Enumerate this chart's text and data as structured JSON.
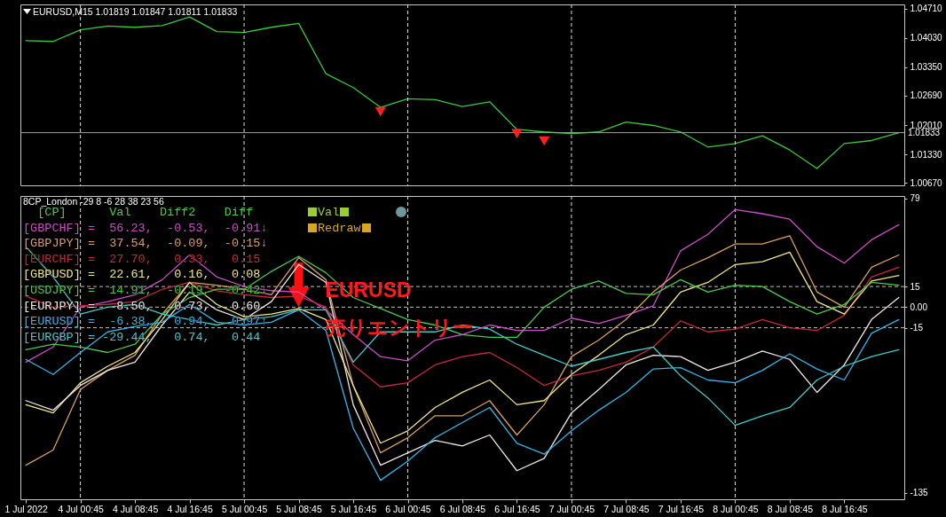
{
  "chart_data": [
    {
      "type": "line",
      "title": "EURUSD,M15  1.01819 1.01847 1.01811 1.01833",
      "categories": [
        "1 Jul 2022",
        null,
        "4 Jul 00:45",
        null,
        "4 Jul 08:45",
        null,
        "4 Jul 16:45",
        null,
        "5 Jul 00:45",
        null,
        "5 Jul 08:45",
        null,
        "5 Jul 16:45",
        null,
        "6 Jul 00:45",
        null,
        "6 Jul 08:45",
        null,
        "6 Jul 16:45",
        null,
        "7 Jul 00:45",
        null,
        "7 Jul 08:45",
        null,
        "7 Jul 16:45",
        null,
        "8 Jul 00:45",
        null,
        "8 Jul 08:45",
        null,
        "8 Jul 16:45",
        null,
        null
      ],
      "ylim": [
        1.0061,
        1.0481
      ],
      "yticks": [
        {
          "value": 1.0471,
          "label": "1.04710"
        },
        {
          "value": 1.0403,
          "label": "1.04030"
        },
        {
          "value": 1.0335,
          "label": "1.03350"
        },
        {
          "value": 1.0269,
          "label": "1.02690"
        },
        {
          "value": 1.0201,
          "label": "1.02010"
        },
        {
          "value": 1.0133,
          "label": "1.01330"
        },
        {
          "value": 1.0067,
          "label": "1.00670"
        }
      ],
      "tick_labels": "y",
      "series": [
        {
          "color": "#3cc83c",
          "values": [
            1.0397,
            1.0395,
            1.0422,
            1.0431,
            1.0428,
            1.0432,
            1.0452,
            1.0418,
            1.0416,
            1.0428,
            1.0437,
            1.032,
            1.0288,
            1.0242,
            1.0262,
            1.026,
            1.0244,
            1.0255,
            1.0191,
            1.0185,
            1.0181,
            1.0185,
            1.0208,
            1.02,
            1.0185,
            1.015,
            1.0158,
            1.0176,
            1.0143,
            1.01,
            1.0158,
            1.0165,
            1.0183
          ]
        },
        {
          "type": "scatter",
          "marker": "triangle",
          "color": "#ff2020",
          "values": [
            null,
            null,
            null,
            null,
            null,
            null,
            null,
            null,
            null,
            null,
            null,
            null,
            null,
            1.0232,
            null,
            null,
            null,
            null,
            1.0181,
            1.0164,
            null,
            null,
            null,
            null,
            null,
            null,
            null,
            null,
            null,
            null,
            null,
            null,
            null
          ]
        }
      ],
      "ref_lines": [
        {
          "axis": "y",
          "value": 1.01833,
          "label": "1.01833",
          "color": "#a0a0a0",
          "line_style": "solid"
        },
        {
          "axis": "x",
          "value": "4 Jul 00:45",
          "color": "#e0e0e0",
          "line_style": "dashed"
        },
        {
          "axis": "x",
          "value": "5 Jul 00:45",
          "color": "#e0e0e0",
          "line_style": "dashed"
        },
        {
          "axis": "x",
          "value": "6 Jul 00:45",
          "color": "#e0e0e0",
          "line_style": "dashed"
        },
        {
          "axis": "x",
          "value": "7 Jul 00:45",
          "color": "#e0e0e0",
          "line_style": "dashed"
        },
        {
          "axis": "x",
          "value": "8 Jul 00:45",
          "color": "#e0e0e0",
          "line_style": "dashed"
        }
      ]
    },
    {
      "type": "line",
      "title": "8CP_London -29 8 -6 28 38 23 56",
      "categories": [
        "1 Jul 2022",
        null,
        "4 Jul 00:45",
        null,
        "4 Jul 08:45",
        null,
        "4 Jul 16:45",
        null,
        "5 Jul 00:45",
        null,
        "5 Jul 08:45",
        null,
        "5 Jul 16:45",
        null,
        "6 Jul 00:45",
        null,
        "6 Jul 08:45",
        null,
        "6 Jul 16:45",
        null,
        "7 Jul 00:45",
        null,
        "7 Jul 08:45",
        null,
        "7 Jul 16:45",
        null,
        "8 Jul 00:45",
        null,
        "8 Jul 08:45",
        null,
        "8 Jul 16:45",
        null,
        null
      ],
      "ylim": [
        -139.8,
        80.9
      ],
      "yticks": [
        79,
        15,
        {
          "value": 0,
          "label": "0.00"
        },
        -15,
        -135
      ],
      "series": [
        {
          "color": "#c84fc8",
          "values": [
            -40,
            -29,
            0,
            4,
            9,
            20,
            38,
            22,
            15,
            12,
            11,
            -2,
            -20,
            -36,
            -39,
            -24,
            -20,
            -13,
            -17,
            -17,
            -8,
            -12,
            -6,
            1,
            41,
            53,
            71,
            68,
            64,
            44,
            32,
            49,
            60
          ]
        },
        {
          "color": "#d8a060",
          "values": [
            -115,
            -104,
            -60,
            -46,
            -35,
            -5,
            18,
            16,
            13,
            9,
            36,
            20,
            -57,
            -106,
            -95,
            -79,
            -79,
            -68,
            -93,
            -71,
            -36,
            -24,
            -9,
            11,
            27,
            36,
            46,
            46,
            52,
            11,
            0,
            29,
            38
          ]
        },
        {
          "color": "#c8283c",
          "values": [
            8,
            0,
            1,
            2,
            4,
            13,
            18,
            12,
            9,
            7,
            8,
            0,
            -42,
            -58,
            -55,
            -42,
            -36,
            -33,
            -44,
            -57,
            -50,
            -46,
            -40,
            -29,
            -10,
            -18,
            -16,
            -9,
            -15,
            -17,
            -6,
            22,
            29
          ]
        },
        {
          "color": "#f0e68c",
          "values": [
            -71,
            -77,
            -55,
            -43,
            -33,
            -9,
            18,
            2,
            -7,
            -5,
            -1,
            -9,
            -57,
            -99,
            -90,
            -73,
            -62,
            -53,
            -71,
            -68,
            -49,
            -35,
            -20,
            -13,
            11,
            18,
            31,
            33,
            40,
            4,
            -5,
            19,
            23
          ]
        },
        {
          "color": "#4cc84c",
          "values": [
            -31,
            -27,
            -29,
            -33,
            -27,
            -5,
            7,
            13,
            13,
            26,
            37,
            25,
            7,
            -1,
            -9,
            -13,
            -20,
            -22,
            -22,
            0,
            13,
            19,
            10,
            9,
            20,
            11,
            16,
            15,
            4,
            -5,
            2,
            18,
            16
          ]
        },
        {
          "color": "#f5e6e6",
          "values": [
            -68,
            -75,
            -57,
            -46,
            -40,
            -13,
            11,
            -2,
            -9,
            4,
            31,
            18,
            -71,
            -115,
            -106,
            -97,
            -101,
            -93,
            -119,
            -110,
            -77,
            -60,
            -42,
            -35,
            -36,
            -46,
            -40,
            -32,
            -38,
            -62,
            -42,
            -9,
            7
          ]
        },
        {
          "color": "#35b5e8",
          "values": [
            -38,
            -49,
            -33,
            -18,
            -14,
            -11,
            2,
            -11,
            -13,
            -11,
            -2,
            -17,
            -88,
            -126,
            -112,
            -95,
            -84,
            -73,
            -99,
            -107,
            -90,
            -75,
            -62,
            -45,
            -44,
            -53,
            -55,
            -46,
            -34,
            -45,
            -53,
            -19,
            -9
          ]
        },
        {
          "color": "#48c8c8",
          "values": [
            44,
            22,
            -5,
            0,
            2,
            -5,
            -9,
            -13,
            -9,
            -7,
            -2,
            -2,
            -40,
            -18,
            -18,
            -18,
            -13,
            -16,
            -27,
            -35,
            -43,
            -38,
            -33,
            -29,
            -50,
            -66,
            -86,
            -79,
            -73,
            -53,
            -43,
            -36,
            -31
          ]
        }
      ],
      "ref_lines": [
        {
          "axis": "y",
          "value": 15,
          "color": "#c0c0c0",
          "line_style": "dashed"
        },
        {
          "axis": "y",
          "value": 0,
          "color": "#c0c0c0",
          "line_style": "dashed"
        },
        {
          "axis": "y",
          "value": -15,
          "color": "#c0c0c0",
          "line_style": "dashed"
        },
        {
          "axis": "x",
          "value": "4 Jul 00:45",
          "color": "#e0e0e0",
          "line_style": "dashed"
        },
        {
          "axis": "x",
          "value": "5 Jul 00:45",
          "color": "#e0e0e0",
          "line_style": "dashed"
        },
        {
          "axis": "x",
          "value": "6 Jul 00:45",
          "color": "#e0e0e0",
          "line_style": "dashed"
        },
        {
          "axis": "x",
          "value": "7 Jul 00:45",
          "color": "#e0e0e0",
          "line_style": "dashed"
        },
        {
          "axis": "x",
          "value": "8 Jul 00:45",
          "color": "#e0e0e0",
          "line_style": "dashed"
        }
      ],
      "annotations": [
        "  [CP]      Val    Diff2    Diff",
        "[GBPCHF] =  56.23,  -0.53,  -0.91↓",
        "[GBPJPY] =  37.54,  -0.09,  -0.15↓",
        "[EURCHF] =  27.70,   0.33,   0.15",
        "[GBPUSD] =  22.61,   0.16,   0.08",
        "[USDJPY] =  14.91,  -0.19,  -0.42↓",
        "[EURJPY] =   8.50,   0.73,   0.60",
        "[EURUSD] =  -6.38,   0.94,   0.97↑",
        "[EURGBP] = -29.44,   0.74,   0.44",
        "Val",
        "Redraw",
        {
          "text": "EURUSD 売りエントリー",
          "x": "5 Jul 08:45",
          "y": 0
        }
      ]
    }
  ]
}
